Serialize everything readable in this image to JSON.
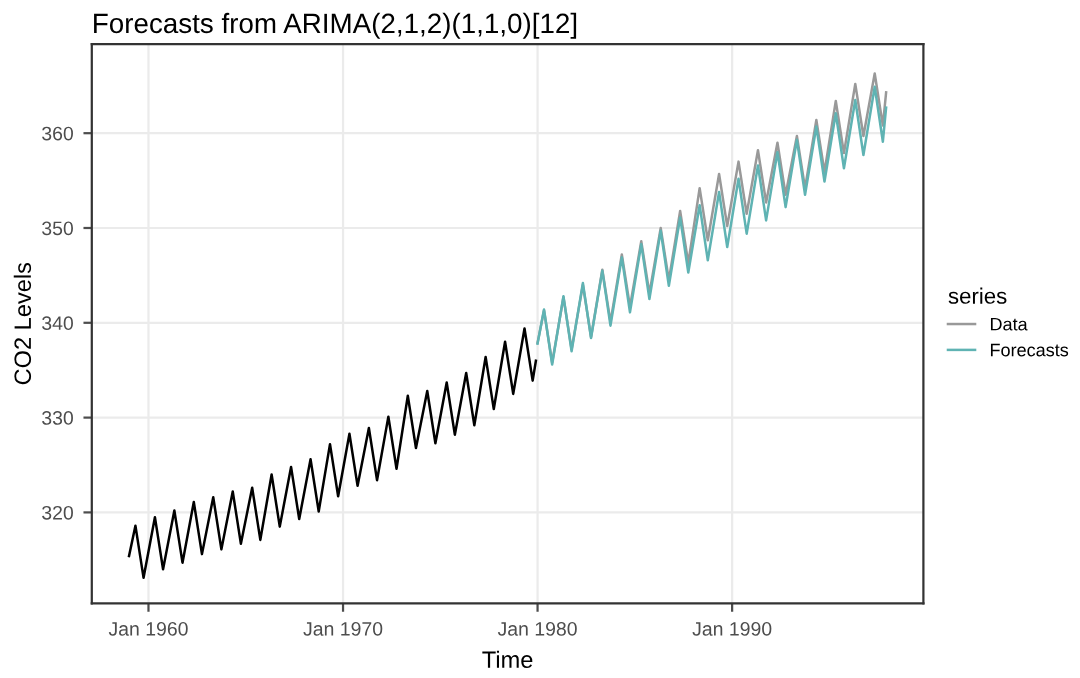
{
  "chart_data": {
    "type": "line",
    "title": "Forecasts from ARIMA(2,1,2)(1,1,0)[12]",
    "xlabel": "Time",
    "ylabel": "CO2 Levels",
    "legend_title": "series",
    "xlim": [
      "1957-02",
      "1999-11"
    ],
    "xticks": [
      {
        "value": "1960-01",
        "label": "Jan 1960"
      },
      {
        "value": "1970-01",
        "label": "Jan 1970"
      },
      {
        "value": "1980-01",
        "label": "Jan 1980"
      },
      {
        "value": "1990-01",
        "label": "Jan 1990"
      }
    ],
    "ylim": [
      310.4,
      369.4
    ],
    "yticks": [
      320,
      330,
      340,
      350,
      360
    ],
    "grid": true,
    "legend": "right",
    "marker": "none",
    "line_style": "solid",
    "series": [
      {
        "color": "#000000",
        "x": [
          "1959-01",
          "1959-05",
          "1959-10",
          "1960-05",
          "1960-10",
          "1961-05",
          "1961-10",
          "1962-05",
          "1962-10",
          "1963-05",
          "1963-10",
          "1964-05",
          "1964-10",
          "1965-05",
          "1965-10",
          "1966-05",
          "1966-10",
          "1967-05",
          "1967-10",
          "1968-05",
          "1968-10",
          "1969-05",
          "1969-10",
          "1970-05",
          "1970-10",
          "1971-05",
          "1971-10",
          "1972-05",
          "1972-10",
          "1973-05",
          "1973-10",
          "1974-05",
          "1974-10",
          "1975-05",
          "1975-10",
          "1976-05",
          "1976-10",
          "1977-05",
          "1977-10",
          "1978-05",
          "1978-10",
          "1979-05",
          "1979-10",
          "1979-12"
        ],
        "values": [
          315.4,
          318.6,
          313.1,
          319.5,
          314.0,
          320.2,
          314.7,
          321.1,
          315.6,
          321.6,
          316.1,
          322.2,
          316.7,
          322.6,
          317.1,
          324.0,
          318.5,
          324.8,
          319.3,
          325.6,
          320.1,
          327.2,
          321.7,
          328.3,
          322.8,
          328.9,
          323.4,
          330.1,
          324.6,
          332.3,
          326.8,
          332.8,
          327.3,
          333.7,
          328.2,
          334.7,
          329.2,
          336.4,
          330.9,
          338.0,
          332.5,
          339.4,
          333.9,
          336.0
        ]
      },
      {
        "name": "Data",
        "color": "#999999",
        "x": [
          "1980-01",
          "1980-05",
          "1980-10",
          "1981-05",
          "1981-10",
          "1982-05",
          "1982-10",
          "1983-05",
          "1983-10",
          "1984-05",
          "1984-10",
          "1985-05",
          "1985-10",
          "1986-05",
          "1986-10",
          "1987-05",
          "1987-10",
          "1988-05",
          "1988-10",
          "1989-05",
          "1989-10",
          "1990-05",
          "1990-10",
          "1991-05",
          "1991-10",
          "1992-05",
          "1992-10",
          "1993-05",
          "1993-10",
          "1994-05",
          "1994-10",
          "1995-05",
          "1995-10",
          "1996-05",
          "1996-10",
          "1997-05",
          "1997-10",
          "1997-12"
        ],
        "values": [
          337.9,
          341.3,
          335.8,
          342.7,
          337.2,
          344.0,
          338.5,
          345.6,
          340.1,
          347.2,
          341.7,
          348.6,
          343.1,
          350.0,
          344.5,
          351.8,
          346.3,
          354.2,
          348.7,
          355.7,
          350.2,
          357.0,
          351.5,
          358.2,
          352.7,
          359.0,
          353.5,
          359.7,
          354.2,
          361.4,
          355.9,
          363.4,
          357.9,
          365.2,
          359.7,
          366.3,
          360.8,
          364.3
        ]
      },
      {
        "name": "Forecasts",
        "color": "#5fb3b3",
        "x": [
          "1980-01",
          "1980-05",
          "1980-10",
          "1981-05",
          "1981-10",
          "1982-05",
          "1982-10",
          "1983-05",
          "1983-10",
          "1984-05",
          "1984-10",
          "1985-05",
          "1985-10",
          "1986-05",
          "1986-10",
          "1987-05",
          "1987-10",
          "1988-05",
          "1988-10",
          "1989-05",
          "1989-10",
          "1990-05",
          "1990-10",
          "1991-05",
          "1991-10",
          "1992-05",
          "1992-10",
          "1993-05",
          "1993-10",
          "1994-05",
          "1994-10",
          "1995-05",
          "1995-10",
          "1996-05",
          "1996-10",
          "1997-05",
          "1997-10",
          "1997-12"
        ],
        "values": [
          337.8,
          341.4,
          335.6,
          342.8,
          337.0,
          344.2,
          338.4,
          345.5,
          339.7,
          346.9,
          341.1,
          348.3,
          342.5,
          349.7,
          343.9,
          351.1,
          345.3,
          352.4,
          346.6,
          353.8,
          348.0,
          355.2,
          349.4,
          356.6,
          350.8,
          358.0,
          352.2,
          359.3,
          353.5,
          360.7,
          354.9,
          362.1,
          356.3,
          363.5,
          357.7,
          364.9,
          359.1,
          362.7
        ]
      }
    ]
  }
}
